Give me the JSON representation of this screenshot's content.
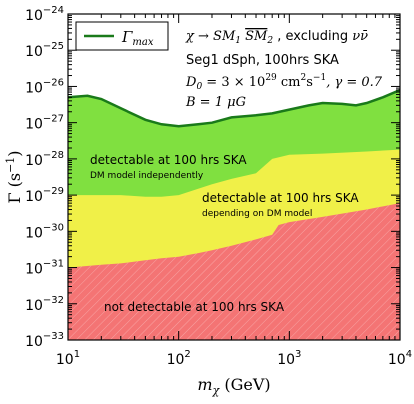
{
  "chart_data": {
    "type": "area",
    "x_scale": "log",
    "y_scale": "log",
    "xlim": [
      10,
      10000
    ],
    "ylim": [
      1e-33,
      1e-24
    ],
    "xlabel": {
      "base": "m",
      "sub": "χ",
      "unit": " (GeV)"
    },
    "ylabel": {
      "text": "Γ (s",
      "sup": "−1",
      "close": ")"
    },
    "x_ticks": [
      {
        "value": 10,
        "base": "10",
        "exp": "1"
      },
      {
        "value": 100,
        "base": "10",
        "exp": "2"
      },
      {
        "value": 1000,
        "base": "10",
        "exp": "3"
      },
      {
        "value": 10000,
        "base": "10",
        "exp": "4"
      }
    ],
    "y_ticks": [
      {
        "value": 1e-33,
        "base": "10",
        "exp": "-33"
      },
      {
        "value": 1e-32,
        "base": "10",
        "exp": "-32"
      },
      {
        "value": 1e-31,
        "base": "10",
        "exp": "-31"
      },
      {
        "value": 1e-30,
        "base": "10",
        "exp": "-30"
      },
      {
        "value": 1e-29,
        "base": "10",
        "exp": "-29"
      },
      {
        "value": 1e-28,
        "base": "10",
        "exp": "-28"
      },
      {
        "value": 1e-27,
        "base": "10",
        "exp": "-27"
      },
      {
        "value": 1e-26,
        "base": "10",
        "exp": "-26"
      },
      {
        "value": 1e-25,
        "base": "10",
        "exp": "-25"
      },
      {
        "value": 1e-24,
        "base": "10",
        "exp": "-24"
      }
    ],
    "legend": {
      "placement": "top-left",
      "entry": {
        "base": "Γ",
        "sub": "max"
      },
      "color": "#1a7a1a"
    },
    "gamma_max": {
      "x": [
        10,
        15,
        20,
        30,
        50,
        70,
        100,
        150,
        200,
        300,
        500,
        700,
        1000,
        1500,
        2000,
        3000,
        4000,
        5000,
        7000,
        10000
      ],
      "y": [
        5e-27,
        5.5e-27,
        4.5e-27,
        2.5e-27,
        1.2e-27,
        9e-28,
        8e-28,
        9e-28,
        1e-27,
        1.4e-27,
        1.6e-27,
        1.8e-27,
        2.3e-27,
        3e-27,
        3.5e-27,
        3.3e-27,
        3e-27,
        3.5e-27,
        5e-27,
        8e-27
      ],
      "color": "#1a7a1a",
      "fill": "#80e040"
    },
    "boundary_independent": {
      "x": [
        10,
        15,
        20,
        30,
        50,
        70,
        100,
        150,
        200,
        300,
        500,
        700,
        1000,
        2000,
        5000,
        10000
      ],
      "y": [
        1e-29,
        1e-29,
        1e-29,
        1e-29,
        9e-30,
        9e-30,
        1e-29,
        1.5e-29,
        2e-29,
        2.8e-29,
        4e-29,
        1e-28,
        1.3e-28,
        1.4e-28,
        1.6e-28,
        1.8e-28
      ],
      "fill": "#f0f048"
    },
    "boundary_dependent": {
      "x": [
        10,
        20,
        30,
        50,
        70,
        100,
        150,
        200,
        300,
        500,
        700,
        800,
        1000,
        2000,
        5000,
        10000
      ],
      "y": [
        1e-31,
        1.2e-31,
        1.3e-31,
        1.6e-31,
        1.8e-31,
        2e-31,
        2.5e-31,
        3e-31,
        4e-31,
        6e-31,
        8e-31,
        1.5e-30,
        1.8e-30,
        2.5e-30,
        4e-30,
        6e-30
      ],
      "fill": "#f47474"
    },
    "annotations": {
      "process": {
        "prefix": "χ → SM",
        "sub1": "1",
        "mid": " ",
        "over": "SM",
        "sub2": "2",
        "suffix": " , excluding ",
        "nu": "νν̄"
      },
      "target": "Seg1 dSph, 100hrs SKA",
      "d0": {
        "prefix": "D",
        "sub": "0",
        "eq": " = 3 × 10",
        "exp": "29",
        "unit": " cm",
        "unit_exp": "2",
        "unit2": "s",
        "unit2_exp": "−1",
        "gamma": ", γ = 0.7"
      },
      "b": "B = 1 μG",
      "green_main": "detectable at 100 hrs SKA",
      "green_sub": "DM model independently",
      "yellow_main": "detectable at 100 hrs SKA",
      "yellow_sub": "depending on DM model",
      "red_main": "not detectable at 100 hrs SKA"
    }
  }
}
